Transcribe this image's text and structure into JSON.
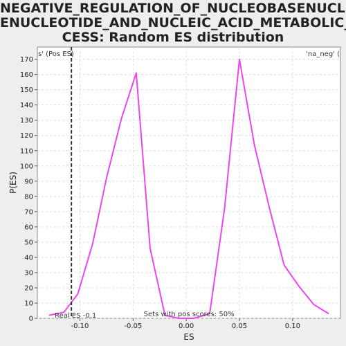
{
  "chart_data": {
    "type": "line",
    "title_lines": [
      "NEGATIVE_REGULATION_OF_NUCLEOBASENUCLEOSID",
      "ENUCLEOTIDE_AND_NUCLEIC_ACID_METABOLIC_PRO",
      "CESS: Random ES distribution"
    ],
    "xlabel": "ES",
    "ylabel": "P(ES)",
    "xlim": [
      -0.14,
      0.145
    ],
    "ylim": [
      0,
      178
    ],
    "xticks": [
      -0.1,
      -0.05,
      0.0,
      0.05,
      0.1
    ],
    "xtick_labels": [
      "-0.10",
      "-0.05",
      "0.00",
      "0.05",
      "0.10"
    ],
    "yticks": [
      0,
      10,
      20,
      30,
      40,
      50,
      60,
      70,
      80,
      90,
      100,
      110,
      120,
      130,
      140,
      150,
      160,
      170
    ],
    "grid": true,
    "series": [
      {
        "color": "#ee44ee",
        "x": [
          -0.129,
          -0.115,
          -0.102,
          -0.088,
          -0.075,
          -0.061,
          -0.047,
          -0.034,
          -0.02,
          -0.007,
          0.007,
          0.022,
          0.036,
          0.05,
          0.064,
          0.078,
          0.092,
          0.106,
          0.12,
          0.134
        ],
        "y": [
          2,
          4,
          16,
          49,
          92,
          131,
          161,
          46,
          2,
          0,
          0,
          3,
          72,
          170,
          114,
          73,
          35,
          21,
          9,
          3
        ]
      }
    ],
    "real_es": {
      "x": -0.108,
      "label": "Real ES -0.1"
    },
    "left_label": "s' (Pos ES)",
    "right_label": "'na_neg' (",
    "pos_scores_label": "Sets with pos scores: 50%",
    "left_label_color": "#cc3333",
    "right_label_color": "#3333cc"
  }
}
